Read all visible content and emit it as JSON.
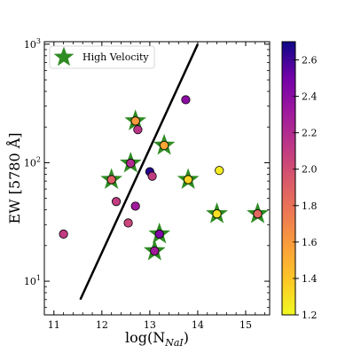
{
  "chart_data": {
    "type": "scatter",
    "title": "",
    "xlabel_main": "log(N",
    "xlabel_sub": "NaI",
    "xlabel_close": ")",
    "ylabel": "EW [5780 Å]",
    "xlim": [
      10.8,
      15.5
    ],
    "ylim": [
      5.2,
      1050
    ],
    "yscale": "log",
    "x_ticks": [
      11,
      12,
      13,
      14,
      15
    ],
    "y_ticks": [
      {
        "value": 10,
        "base": "10",
        "exp": "1"
      },
      {
        "value": 100,
        "base": "10",
        "exp": "2"
      },
      {
        "value": 1000,
        "base": "10",
        "exp": "3"
      }
    ],
    "legend": {
      "label": "High Velocity",
      "marker": "star",
      "color": "#2e8b22",
      "placement": "top-left"
    },
    "colorbar": {
      "range": [
        1.2,
        2.7
      ],
      "colormap": "plasma_r",
      "ticks": [
        "1.2",
        "1.4",
        "1.6",
        "1.8",
        "2.0",
        "2.2",
        "2.4",
        "2.6"
      ]
    },
    "fit_line": {
      "x": [
        11.55,
        14.0
      ],
      "y": [
        7,
        1000
      ],
      "color": "#000000"
    },
    "points": [
      {
        "x": 11.2,
        "y": 25,
        "c": 2.1,
        "high_velocity": false
      },
      {
        "x": 12.2,
        "y": 72,
        "c": 1.9,
        "high_velocity": true
      },
      {
        "x": 12.3,
        "y": 47,
        "c": 2.1,
        "high_velocity": false
      },
      {
        "x": 12.55,
        "y": 31,
        "c": 2.05,
        "high_velocity": false
      },
      {
        "x": 12.6,
        "y": 99,
        "c": 2.2,
        "high_velocity": true
      },
      {
        "x": 12.7,
        "y": 225,
        "c": 1.6,
        "high_velocity": true
      },
      {
        "x": 12.75,
        "y": 190,
        "c": 2.15,
        "high_velocity": false
      },
      {
        "x": 12.7,
        "y": 43,
        "c": 2.3,
        "high_velocity": false
      },
      {
        "x": 13.0,
        "y": 84,
        "c": 2.65,
        "high_velocity": false
      },
      {
        "x": 13.05,
        "y": 77,
        "c": 2.1,
        "high_velocity": false
      },
      {
        "x": 13.1,
        "y": 18,
        "c": 2.3,
        "high_velocity": true
      },
      {
        "x": 13.2,
        "y": 25,
        "c": 2.45,
        "high_velocity": true
      },
      {
        "x": 13.3,
        "y": 140,
        "c": 1.55,
        "high_velocity": true
      },
      {
        "x": 13.75,
        "y": 340,
        "c": 2.4,
        "high_velocity": false
      },
      {
        "x": 13.8,
        "y": 72,
        "c": 1.35,
        "high_velocity": true
      },
      {
        "x": 14.4,
        "y": 37,
        "c": 1.3,
        "high_velocity": true
      },
      {
        "x": 14.45,
        "y": 86,
        "c": 1.25,
        "high_velocity": false
      },
      {
        "x": 15.25,
        "y": 37,
        "c": 1.85,
        "high_velocity": true
      }
    ]
  }
}
